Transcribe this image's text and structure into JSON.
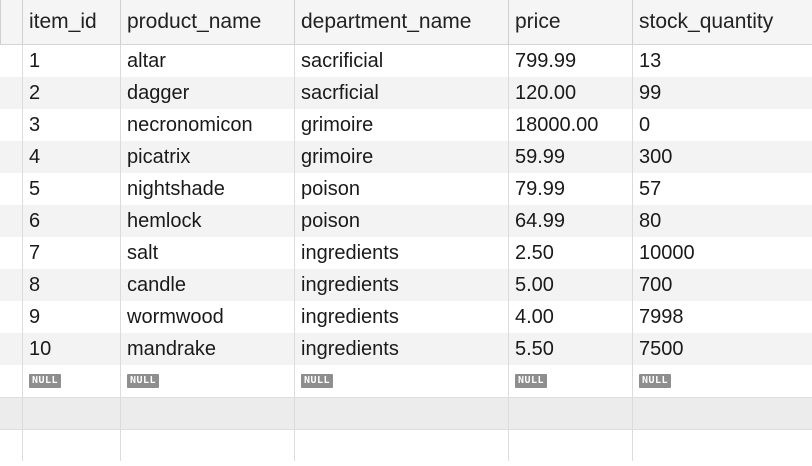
{
  "columns": [
    "item_id",
    "product_name",
    "department_name",
    "price",
    "stock_quantity"
  ],
  "rows": [
    [
      "1",
      "altar",
      "sacrificial",
      "799.99",
      "13"
    ],
    [
      "2",
      "dagger",
      "sacrficial",
      "120.00",
      "99"
    ],
    [
      "3",
      "necronomicon",
      "grimoire",
      "18000.00",
      "0"
    ],
    [
      "4",
      "picatrix",
      "grimoire",
      "59.99",
      "300"
    ],
    [
      "5",
      "nightshade",
      "poison",
      "79.99",
      "57"
    ],
    [
      "6",
      "hemlock",
      "poison",
      "64.99",
      "80"
    ],
    [
      "7",
      "salt",
      "ingredients",
      "2.50",
      "10000"
    ],
    [
      "8",
      "candle",
      "ingredients",
      "5.00",
      "700"
    ],
    [
      "9",
      "wormwood",
      "ingredients",
      "4.00",
      "7998"
    ],
    [
      "10",
      "mandrake",
      "ingredients",
      "5.50",
      "7500"
    ]
  ],
  "null_label": "NULL"
}
